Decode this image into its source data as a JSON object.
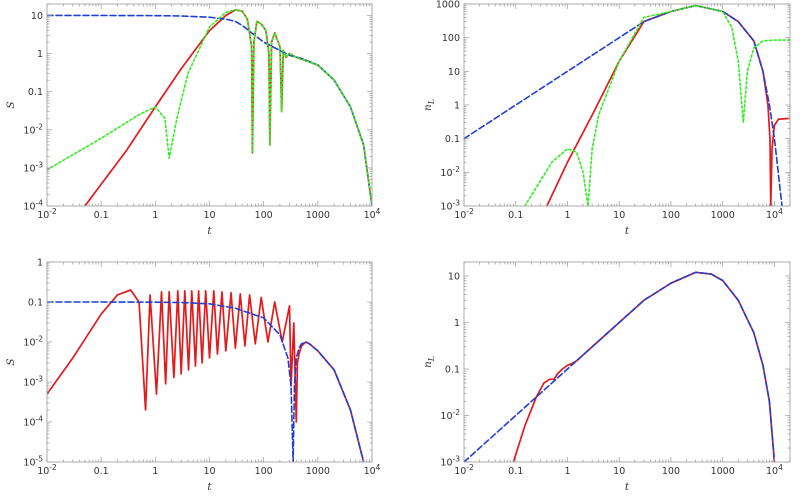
{
  "chart_data": [
    {
      "type": "line",
      "xlabel": "t",
      "ylabel": "S",
      "ylabel_sub": "",
      "xscale": "log",
      "yscale": "log",
      "xlim": [
        0.01,
        10000
      ],
      "ylim": [
        0.0001,
        20
      ],
      "xticks": [
        {
          "v": 0.01,
          "b": "10",
          "e": "-2"
        },
        {
          "v": 0.1,
          "b": "0.1",
          "e": ""
        },
        {
          "v": 1,
          "b": "1",
          "e": ""
        },
        {
          "v": 10,
          "b": "10",
          "e": ""
        },
        {
          "v": 100,
          "b": "100",
          "e": ""
        },
        {
          "v": 1000,
          "b": "1000",
          "e": ""
        },
        {
          "v": 10000,
          "b": "10",
          "e": "4"
        }
      ],
      "yticks": [
        {
          "v": 0.0001,
          "b": "10",
          "e": "-4"
        },
        {
          "v": 0.001,
          "b": "10",
          "e": "-3"
        },
        {
          "v": 0.01,
          "b": "10",
          "e": "-2"
        },
        {
          "v": 0.1,
          "b": "0.1",
          "e": ""
        },
        {
          "v": 1,
          "b": "1",
          "e": ""
        },
        {
          "v": 10,
          "b": "10",
          "e": ""
        }
      ],
      "grid": false,
      "series": [
        {
          "color": "#e31a1c",
          "style": "solid",
          "x": [
            0.05,
            0.3,
            1,
            3,
            10,
            20,
            30,
            40,
            50,
            60,
            62,
            66,
            75,
            90,
            110,
            125,
            130,
            140,
            160,
            200,
            215,
            230,
            260,
            300,
            400,
            600,
            1000,
            2000,
            4000,
            7000,
            10000
          ],
          "y": [
            0.0001,
            0.003,
            0.04,
            0.4,
            4,
            10,
            14,
            13,
            8,
            1.5,
            0.0025,
            2,
            7,
            6,
            4,
            1,
            0.004,
            2,
            3.5,
            1.5,
            0.03,
            1.2,
            0.8,
            1,
            0.8,
            0.65,
            0.5,
            0.2,
            0.04,
            0.004,
            0.0001
          ]
        },
        {
          "color": "#1f3fd4",
          "style": "dashed",
          "x": [
            0.01,
            0.1,
            1,
            3,
            10,
            20,
            30,
            40,
            60,
            100,
            200,
            300,
            500,
            1000,
            2000,
            4000,
            7000,
            10000
          ],
          "y": [
            10,
            10,
            9.9,
            9.7,
            9,
            8,
            7,
            5.5,
            3.5,
            2,
            1.2,
            0.9,
            0.75,
            0.5,
            0.2,
            0.04,
            0.004,
            0.0001
          ]
        },
        {
          "color": "#33ee22",
          "style": "dotted",
          "x": [
            0.01,
            0.1,
            0.5,
            1,
            1.5,
            1.8,
            2.5,
            4,
            10,
            20,
            30,
            40,
            50,
            60,
            62,
            66,
            75,
            90,
            110,
            125,
            130,
            140,
            160,
            200,
            215,
            230,
            260,
            300,
            400,
            600,
            1000,
            2000,
            4000,
            7000,
            10000
          ],
          "y": [
            0.0009,
            0.006,
            0.025,
            0.04,
            0.02,
            0.0018,
            0.02,
            0.3,
            5,
            12,
            14,
            13,
            8,
            1.5,
            0.0025,
            2,
            7,
            6,
            4,
            1,
            0.004,
            2,
            3.5,
            1.5,
            0.03,
            1.2,
            0.8,
            1,
            0.8,
            0.65,
            0.5,
            0.2,
            0.04,
            0.004,
            0.0001
          ]
        }
      ]
    },
    {
      "type": "line",
      "xlabel": "t",
      "ylabel": "n",
      "ylabel_sub": "L",
      "xscale": "log",
      "yscale": "log",
      "xlim": [
        0.01,
        20000
      ],
      "ylim": [
        0.001,
        1000
      ],
      "xticks": [
        {
          "v": 0.01,
          "b": "10",
          "e": "-2"
        },
        {
          "v": 0.1,
          "b": "0.1",
          "e": ""
        },
        {
          "v": 1,
          "b": "1",
          "e": ""
        },
        {
          "v": 10,
          "b": "10",
          "e": ""
        },
        {
          "v": 100,
          "b": "100",
          "e": ""
        },
        {
          "v": 1000,
          "b": "1000",
          "e": ""
        },
        {
          "v": 10000,
          "b": "10",
          "e": "4"
        }
      ],
      "yticks": [
        {
          "v": 0.001,
          "b": "10",
          "e": "-3"
        },
        {
          "v": 0.01,
          "b": "10",
          "e": "-2"
        },
        {
          "v": 0.1,
          "b": "0.1",
          "e": ""
        },
        {
          "v": 1,
          "b": "1",
          "e": ""
        },
        {
          "v": 10,
          "b": "10",
          "e": ""
        },
        {
          "v": 100,
          "b": "100",
          "e": ""
        },
        {
          "v": 1000,
          "b": "1000",
          "e": ""
        }
      ],
      "grid": false,
      "series": [
        {
          "color": "#e31a1c",
          "style": "solid",
          "x": [
            0.4,
            1,
            3,
            10,
            30,
            100,
            300,
            1000,
            2000,
            4000,
            6000,
            7500,
            8200,
            8500,
            9000,
            10000,
            12000,
            20000
          ],
          "y": [
            0.001,
            0.02,
            0.5,
            20,
            300,
            600,
            900,
            600,
            300,
            80,
            10,
            1,
            0.1,
            0.001,
            0.05,
            0.25,
            0.38,
            0.4
          ]
        },
        {
          "color": "#1f3fd4",
          "style": "dashed",
          "x": [
            0.01,
            0.1,
            1,
            10,
            30,
            100,
            300,
            1000,
            2000,
            4000,
            6000,
            8000,
            10000,
            14000
          ],
          "y": [
            0.1,
            1,
            10,
            100,
            300,
            600,
            900,
            600,
            300,
            80,
            10,
            1,
            0.1,
            0.001
          ]
        },
        {
          "color": "#33ee22",
          "style": "dotted",
          "x": [
            0.15,
            0.5,
            1,
            1.5,
            2,
            2.5,
            3,
            4,
            10,
            30,
            100,
            300,
            1000,
            1500,
            2000,
            2500,
            3000,
            4000,
            6000,
            10000,
            20000
          ],
          "y": [
            0.001,
            0.02,
            0.05,
            0.04,
            0.01,
            0.001,
            0.05,
            0.5,
            20,
            400,
            600,
            900,
            600,
            200,
            20,
            0.3,
            10,
            50,
            80,
            85,
            85
          ]
        }
      ]
    },
    {
      "type": "line",
      "xlabel": "t",
      "ylabel": "S",
      "ylabel_sub": "",
      "xscale": "log",
      "yscale": "log",
      "xlim": [
        0.01,
        10000
      ],
      "ylim": [
        1e-05,
        1
      ],
      "xticks": [
        {
          "v": 0.01,
          "b": "10",
          "e": "-2"
        },
        {
          "v": 0.1,
          "b": "0.1",
          "e": ""
        },
        {
          "v": 1,
          "b": "1",
          "e": ""
        },
        {
          "v": 10,
          "b": "10",
          "e": ""
        },
        {
          "v": 100,
          "b": "100",
          "e": ""
        },
        {
          "v": 1000,
          "b": "1000",
          "e": ""
        },
        {
          "v": 10000,
          "b": "10",
          "e": "4"
        }
      ],
      "yticks": [
        {
          "v": 1e-05,
          "b": "10",
          "e": "-5"
        },
        {
          "v": 0.0001,
          "b": "10",
          "e": "-4"
        },
        {
          "v": 0.001,
          "b": "10",
          "e": "-3"
        },
        {
          "v": 0.01,
          "b": "10",
          "e": "-2"
        },
        {
          "v": 0.1,
          "b": "0.1",
          "e": ""
        },
        {
          "v": 1,
          "b": "1",
          "e": ""
        }
      ],
      "grid": false,
      "series": [
        {
          "color": "#e31a1c",
          "style": "solid",
          "x": [
            0.01,
            0.03,
            0.1,
            0.2,
            0.35,
            0.5,
            0.66,
            0.8,
            1.05,
            1.3,
            1.55,
            1.8,
            2.2,
            2.6,
            3.0,
            3.5,
            4.1,
            4.7,
            5.5,
            6.3,
            7.3,
            8.5,
            10,
            12,
            14,
            17,
            20,
            25,
            30,
            37,
            45,
            55,
            70,
            90,
            120,
            160,
            220,
            300,
            320,
            360,
            400,
            420,
            450,
            500,
            600,
            700,
            1000,
            2000,
            4000,
            7000,
            8000
          ],
          "y": [
            0.0005,
            0.004,
            0.05,
            0.15,
            0.2,
            0.1,
            0.0002,
            0.15,
            0.0005,
            0.18,
            0.0009,
            0.18,
            0.0013,
            0.19,
            0.0016,
            0.19,
            0.002,
            0.19,
            0.0025,
            0.19,
            0.003,
            0.19,
            0.004,
            0.19,
            0.005,
            0.18,
            0.006,
            0.17,
            0.007,
            0.16,
            0.008,
            0.15,
            0.009,
            0.13,
            0.01,
            0.1,
            0.01,
            0.08,
            0.0008,
            0.03,
            0.0001,
            0.003,
            0.005,
            0.008,
            0.01,
            0.009,
            0.006,
            0.002,
            0.0002,
            1e-05,
            5e-06
          ]
        },
        {
          "color": "#1f3fd4",
          "style": "dashed",
          "x": [
            0.01,
            0.1,
            1,
            3,
            10,
            30,
            100,
            200,
            280,
            320,
            350,
            370,
            400,
            450,
            500,
            600,
            700,
            1000,
            2000,
            4000,
            7000
          ],
          "y": [
            0.1,
            0.1,
            0.099,
            0.097,
            0.09,
            0.07,
            0.04,
            0.015,
            0.004,
            0.0008,
            1e-05,
            0.0008,
            0.004,
            0.007,
            0.009,
            0.01,
            0.009,
            0.006,
            0.002,
            0.0002,
            1e-05
          ]
        }
      ]
    },
    {
      "type": "line",
      "xlabel": "t",
      "ylabel": "n",
      "ylabel_sub": "L",
      "xscale": "log",
      "yscale": "log",
      "xlim": [
        0.01,
        20000
      ],
      "ylim": [
        0.001,
        20
      ],
      "xticks": [
        {
          "v": 0.01,
          "b": "10",
          "e": "-2"
        },
        {
          "v": 0.1,
          "b": "0.1",
          "e": ""
        },
        {
          "v": 1,
          "b": "1",
          "e": ""
        },
        {
          "v": 10,
          "b": "10",
          "e": ""
        },
        {
          "v": 100,
          "b": "100",
          "e": ""
        },
        {
          "v": 1000,
          "b": "1000",
          "e": ""
        },
        {
          "v": 10000,
          "b": "10",
          "e": "4"
        }
      ],
      "yticks": [
        {
          "v": 0.001,
          "b": "10",
          "e": "-3"
        },
        {
          "v": 0.01,
          "b": "10",
          "e": "-2"
        },
        {
          "v": 0.1,
          "b": "0.1",
          "e": ""
        },
        {
          "v": 1,
          "b": "1",
          "e": ""
        },
        {
          "v": 10,
          "b": "10",
          "e": ""
        }
      ],
      "grid": false,
      "series": [
        {
          "color": "#e31a1c",
          "style": "solid",
          "x": [
            0.09,
            0.15,
            0.25,
            0.35,
            0.45,
            0.55,
            0.65,
            0.8,
            1,
            1.2,
            1.5,
            2,
            3,
            10,
            30,
            100,
            300,
            600,
            1000,
            2000,
            4000,
            6000,
            8000,
            10000
          ],
          "y": [
            0.001,
            0.006,
            0.025,
            0.05,
            0.06,
            0.06,
            0.08,
            0.1,
            0.12,
            0.13,
            0.15,
            0.2,
            0.3,
            1,
            3,
            7,
            12,
            11,
            8,
            3,
            0.6,
            0.12,
            0.02,
            0.001
          ]
        },
        {
          "color": "#1f3fd4",
          "style": "dashed",
          "x": [
            0.01,
            0.03,
            0.1,
            0.3,
            1,
            3,
            10,
            30,
            100,
            300,
            600,
            1000,
            2000,
            4000,
            6000,
            8000,
            10000
          ],
          "y": [
            0.001,
            0.003,
            0.01,
            0.03,
            0.1,
            0.3,
            1,
            3,
            7,
            12,
            11,
            8,
            3,
            0.6,
            0.12,
            0.02,
            0.001
          ]
        }
      ]
    }
  ]
}
